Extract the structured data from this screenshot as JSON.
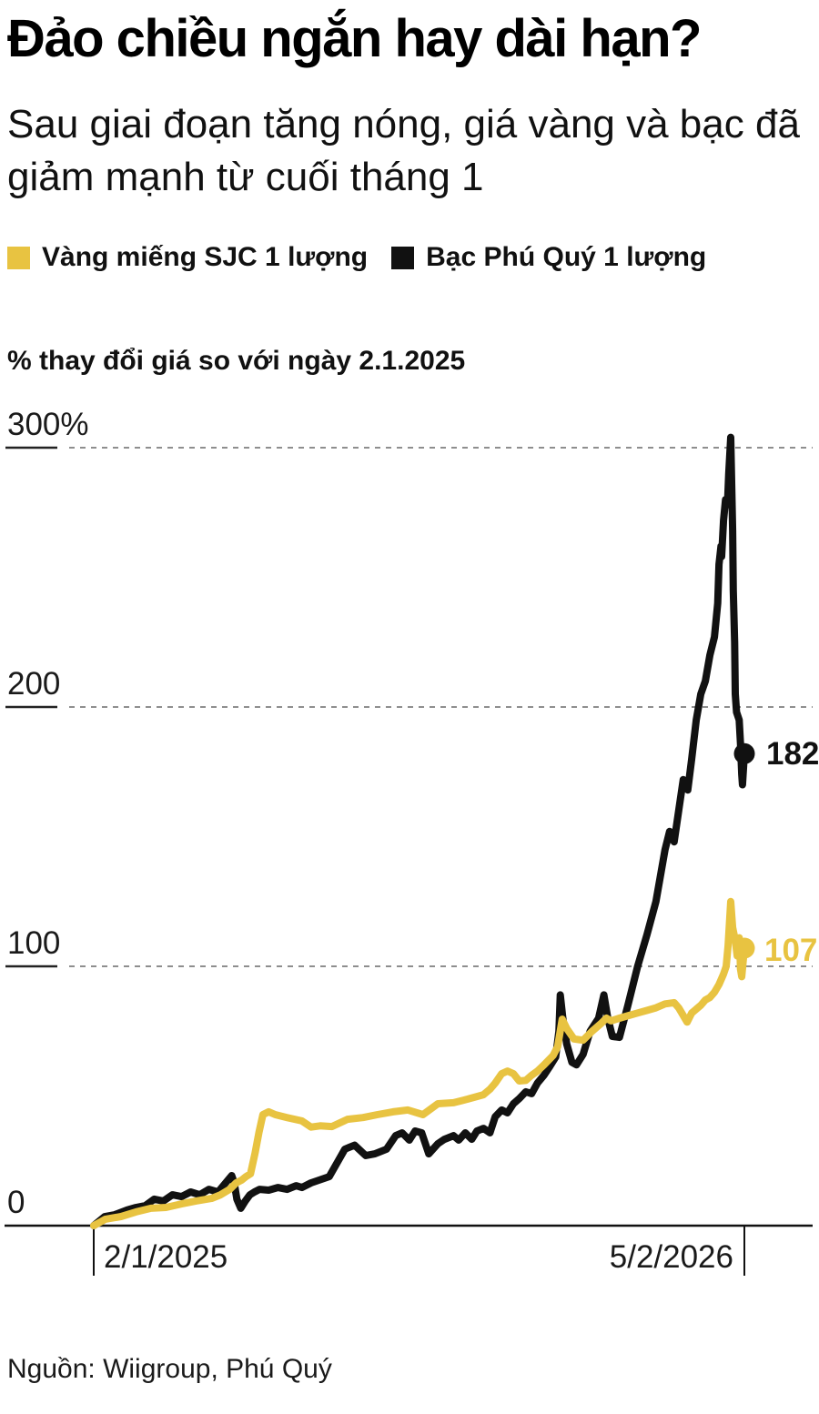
{
  "header": {
    "title": "Đảo chiều ngắn hay dài hạn?",
    "subtitle": "Sau giai đoạn tăng nóng, giá vàng và bạc đã giảm mạnh từ cuối tháng 1"
  },
  "legend": {
    "items": [
      {
        "label": "Vàng miếng SJC 1 lượng",
        "color": "#E8C341"
      },
      {
        "label": "Bạc Phú Quý 1 lượng",
        "color": "#111111"
      }
    ]
  },
  "chart": {
    "axis_title": "% thay đổi giá so với ngày 2.1.2025",
    "y_ticks": [
      {
        "label": "300%",
        "value": 300
      },
      {
        "label": "200",
        "value": 200
      },
      {
        "label": "100",
        "value": 100
      },
      {
        "label": "0",
        "value": 0
      }
    ],
    "x_ticks": [
      {
        "label": "2/1/2025",
        "f": 0
      },
      {
        "label": "5/2/2026",
        "f": 1
      }
    ],
    "end_labels": [
      {
        "text": "182",
        "color": "#111111"
      },
      {
        "text": "107",
        "color": "#E8C341"
      }
    ]
  },
  "source": {
    "text": "Nguồn: Wiigroup, Phú Quý"
  },
  "colors": {
    "gold": "#E8C341",
    "black": "#111111",
    "grid": "#8e8e8e"
  },
  "chart_data": {
    "type": "line",
    "title": "Đảo chiều ngắn hay dài hạn?",
    "ylabel": "% thay đổi giá so với ngày 2.1.2025",
    "ylim": [
      0,
      310
    ],
    "y_gridlines": [
      300,
      200,
      100,
      0
    ],
    "grid": "dashed-horizontal",
    "legend_position": "top",
    "x_axis": {
      "start_label": "2/1/2025",
      "end_label": "5/2/2026",
      "note": "x stored as fraction of timeline from 2/1/2025 (0) to 5/2/2026 (1)"
    },
    "series": [
      {
        "name": "Bạc Phú Quý 1 lượng",
        "color": "#111111",
        "last_value": 182,
        "points": [
          [
            0,
            0
          ],
          [
            0.017,
            3.5
          ],
          [
            0.032,
            4.2
          ],
          [
            0.051,
            6
          ],
          [
            0.065,
            7
          ],
          [
            0.079,
            7.7
          ],
          [
            0.093,
            10.2
          ],
          [
            0.107,
            9.5
          ],
          [
            0.121,
            11.9
          ],
          [
            0.135,
            11.2
          ],
          [
            0.149,
            13
          ],
          [
            0.163,
            11.9
          ],
          [
            0.177,
            14
          ],
          [
            0.191,
            13
          ],
          [
            0.205,
            17.2
          ],
          [
            0.212,
            19.3
          ],
          [
            0.216,
            16.5
          ],
          [
            0.22,
            10.2
          ],
          [
            0.226,
            6.7
          ],
          [
            0.233,
            9.5
          ],
          [
            0.24,
            11.9
          ],
          [
            0.247,
            13
          ],
          [
            0.255,
            14
          ],
          [
            0.269,
            13.7
          ],
          [
            0.283,
            14.7
          ],
          [
            0.297,
            14
          ],
          [
            0.311,
            15.4
          ],
          [
            0.32,
            14.7
          ],
          [
            0.334,
            16.5
          ],
          [
            0.362,
            18.9
          ],
          [
            0.386,
            29.5
          ],
          [
            0.401,
            31
          ],
          [
            0.418,
            27
          ],
          [
            0.432,
            27.7
          ],
          [
            0.45,
            29.5
          ],
          [
            0.464,
            34.7
          ],
          [
            0.474,
            35.8
          ],
          [
            0.485,
            33
          ],
          [
            0.494,
            36.5
          ],
          [
            0.504,
            35.8
          ],
          [
            0.515,
            27.7
          ],
          [
            0.529,
            31.6
          ],
          [
            0.539,
            33.3
          ],
          [
            0.553,
            34.7
          ],
          [
            0.561,
            33
          ],
          [
            0.571,
            35.8
          ],
          [
            0.581,
            33.3
          ],
          [
            0.589,
            36.5
          ],
          [
            0.599,
            37.5
          ],
          [
            0.609,
            35.8
          ],
          [
            0.617,
            42
          ],
          [
            0.627,
            44.6
          ],
          [
            0.636,
            43.5
          ],
          [
            0.645,
            47
          ],
          [
            0.654,
            49
          ],
          [
            0.664,
            51.6
          ],
          [
            0.673,
            50.9
          ],
          [
            0.682,
            55
          ],
          [
            0.692,
            58
          ],
          [
            0.7,
            61
          ],
          [
            0.71,
            65
          ],
          [
            0.715,
            75
          ],
          [
            0.717,
            89
          ],
          [
            0.721,
            80
          ],
          [
            0.727,
            70
          ],
          [
            0.735,
            63
          ],
          [
            0.742,
            62
          ],
          [
            0.752,
            66
          ],
          [
            0.763,
            75
          ],
          [
            0.776,
            80
          ],
          [
            0.784,
            89
          ],
          [
            0.79,
            80
          ],
          [
            0.797,
            73
          ],
          [
            0.808,
            72.6
          ],
          [
            0.821,
            85
          ],
          [
            0.836,
            100
          ],
          [
            0.85,
            112
          ],
          [
            0.864,
            125
          ],
          [
            0.878,
            145
          ],
          [
            0.885,
            152
          ],
          [
            0.892,
            148
          ],
          [
            0.899,
            160
          ],
          [
            0.906,
            172
          ],
          [
            0.913,
            168
          ],
          [
            0.919,
            180
          ],
          [
            0.926,
            195
          ],
          [
            0.933,
            205
          ],
          [
            0.94,
            210
          ],
          [
            0.947,
            220
          ],
          [
            0.954,
            227
          ],
          [
            0.959,
            240
          ],
          [
            0.961,
            255
          ],
          [
            0.964,
            262
          ],
          [
            0.965,
            258
          ],
          [
            0.968,
            272
          ],
          [
            0.971,
            280
          ],
          [
            0.974,
            278
          ],
          [
            0.976,
            290
          ],
          [
            0.979,
            304
          ],
          [
            0.982,
            268
          ],
          [
            0.983,
            245
          ],
          [
            0.985,
            225
          ],
          [
            0.986,
            205
          ],
          [
            0.988,
            198
          ],
          [
            0.992,
            195
          ],
          [
            0.994,
            186
          ],
          [
            0.996,
            174
          ],
          [
            0.997,
            170
          ],
          [
            1,
            182
          ]
        ]
      },
      {
        "name": "Vàng miếng SJC 1 lượng",
        "color": "#E8C341",
        "last_value": 107,
        "points": [
          [
            0,
            0
          ],
          [
            0.018,
            2.5
          ],
          [
            0.042,
            3.5
          ],
          [
            0.065,
            5.3
          ],
          [
            0.088,
            6.7
          ],
          [
            0.111,
            7
          ],
          [
            0.135,
            8.4
          ],
          [
            0.157,
            9.5
          ],
          [
            0.181,
            10.5
          ],
          [
            0.195,
            11.9
          ],
          [
            0.209,
            14
          ],
          [
            0.219,
            16.5
          ],
          [
            0.227,
            17.5
          ],
          [
            0.234,
            18.9
          ],
          [
            0.241,
            20
          ],
          [
            0.248,
            28
          ],
          [
            0.254,
            36
          ],
          [
            0.26,
            42.8
          ],
          [
            0.269,
            43.9
          ],
          [
            0.279,
            42.8
          ],
          [
            0.297,
            41.7
          ],
          [
            0.32,
            40.4
          ],
          [
            0.334,
            38
          ],
          [
            0.348,
            38.5
          ],
          [
            0.366,
            38.2
          ],
          [
            0.39,
            41
          ],
          [
            0.414,
            41.7
          ],
          [
            0.436,
            42.8
          ],
          [
            0.46,
            43.9
          ],
          [
            0.483,
            44.6
          ],
          [
            0.506,
            42.8
          ],
          [
            0.529,
            47
          ],
          [
            0.553,
            47.4
          ],
          [
            0.575,
            48.8
          ],
          [
            0.599,
            50.5
          ],
          [
            0.609,
            52.6
          ],
          [
            0.617,
            55
          ],
          [
            0.627,
            58.6
          ],
          [
            0.636,
            59.6
          ],
          [
            0.645,
            58.6
          ],
          [
            0.654,
            55.8
          ],
          [
            0.664,
            56
          ],
          [
            0.673,
            58
          ],
          [
            0.682,
            59.6
          ],
          [
            0.692,
            62
          ],
          [
            0.706,
            65.6
          ],
          [
            0.713,
            69
          ],
          [
            0.72,
            79.6
          ],
          [
            0.727,
            76
          ],
          [
            0.738,
            72
          ],
          [
            0.752,
            71.5
          ],
          [
            0.766,
            75
          ],
          [
            0.78,
            78
          ],
          [
            0.788,
            80
          ],
          [
            0.795,
            79
          ],
          [
            0.808,
            80
          ],
          [
            0.822,
            81
          ],
          [
            0.836,
            82
          ],
          [
            0.85,
            83
          ],
          [
            0.864,
            84
          ],
          [
            0.878,
            85.5
          ],
          [
            0.892,
            86
          ],
          [
            0.899,
            84
          ],
          [
            0.912,
            78.5
          ],
          [
            0.919,
            82
          ],
          [
            0.933,
            85
          ],
          [
            0.94,
            87
          ],
          [
            0.947,
            88
          ],
          [
            0.954,
            90
          ],
          [
            0.961,
            93
          ],
          [
            0.968,
            97
          ],
          [
            0.972,
            100
          ],
          [
            0.975,
            108
          ],
          [
            0.979,
            125
          ],
          [
            0.982,
            115
          ],
          [
            0.986,
            110
          ],
          [
            0.989,
            104
          ],
          [
            0.992,
            111
          ],
          [
            0.993,
            108
          ],
          [
            0.994,
            99
          ],
          [
            0.996,
            96
          ],
          [
            1,
            107
          ]
        ]
      }
    ]
  }
}
